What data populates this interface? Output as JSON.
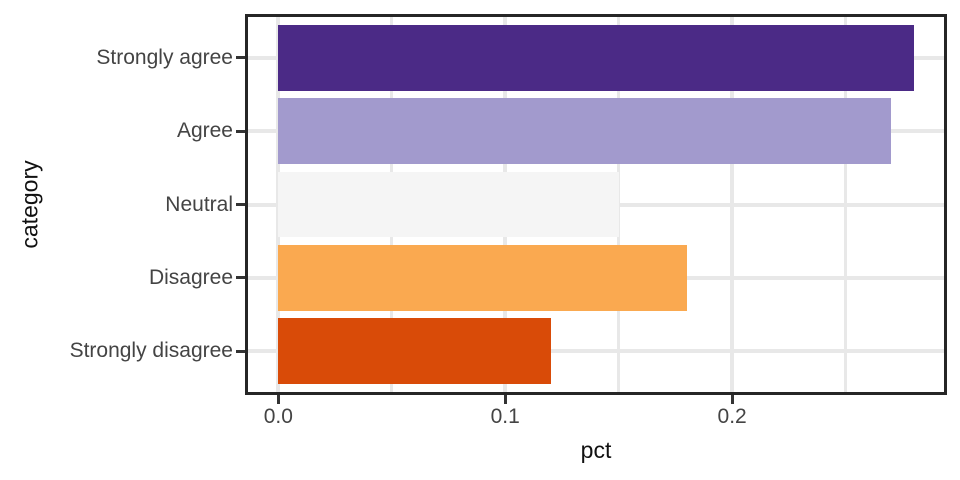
{
  "chart_data": {
    "type": "bar",
    "orientation": "horizontal",
    "title": "",
    "xlabel": "pct",
    "ylabel": "category",
    "categories": [
      "Strongly agree",
      "Agree",
      "Neutral",
      "Disagree",
      "Strongly disagree"
    ],
    "values": [
      0.28,
      0.27,
      0.15,
      0.18,
      0.12
    ],
    "bar_colors": [
      "#4B2A86",
      "#A29ACD",
      "#F5F5F5",
      "#FAA950",
      "#D94B08"
    ],
    "x_ticks": [
      0.0,
      0.1,
      0.2
    ],
    "x_tick_labels": [
      "0.0",
      "0.1",
      "0.2"
    ],
    "x_minor_ticks": [
      0.05,
      0.15,
      0.25
    ],
    "xlim": [
      -0.0147,
      0.2947
    ],
    "bar_width_fraction": 0.9,
    "grid": true,
    "legend_position": "none"
  },
  "style": {
    "background": "#FFFFFF",
    "panel_border_color": "#262626",
    "grid_color": "#E8E8E8",
    "tick_color": "#333333",
    "tick_label_color": "#444444",
    "axis_title_color": "#111111"
  }
}
